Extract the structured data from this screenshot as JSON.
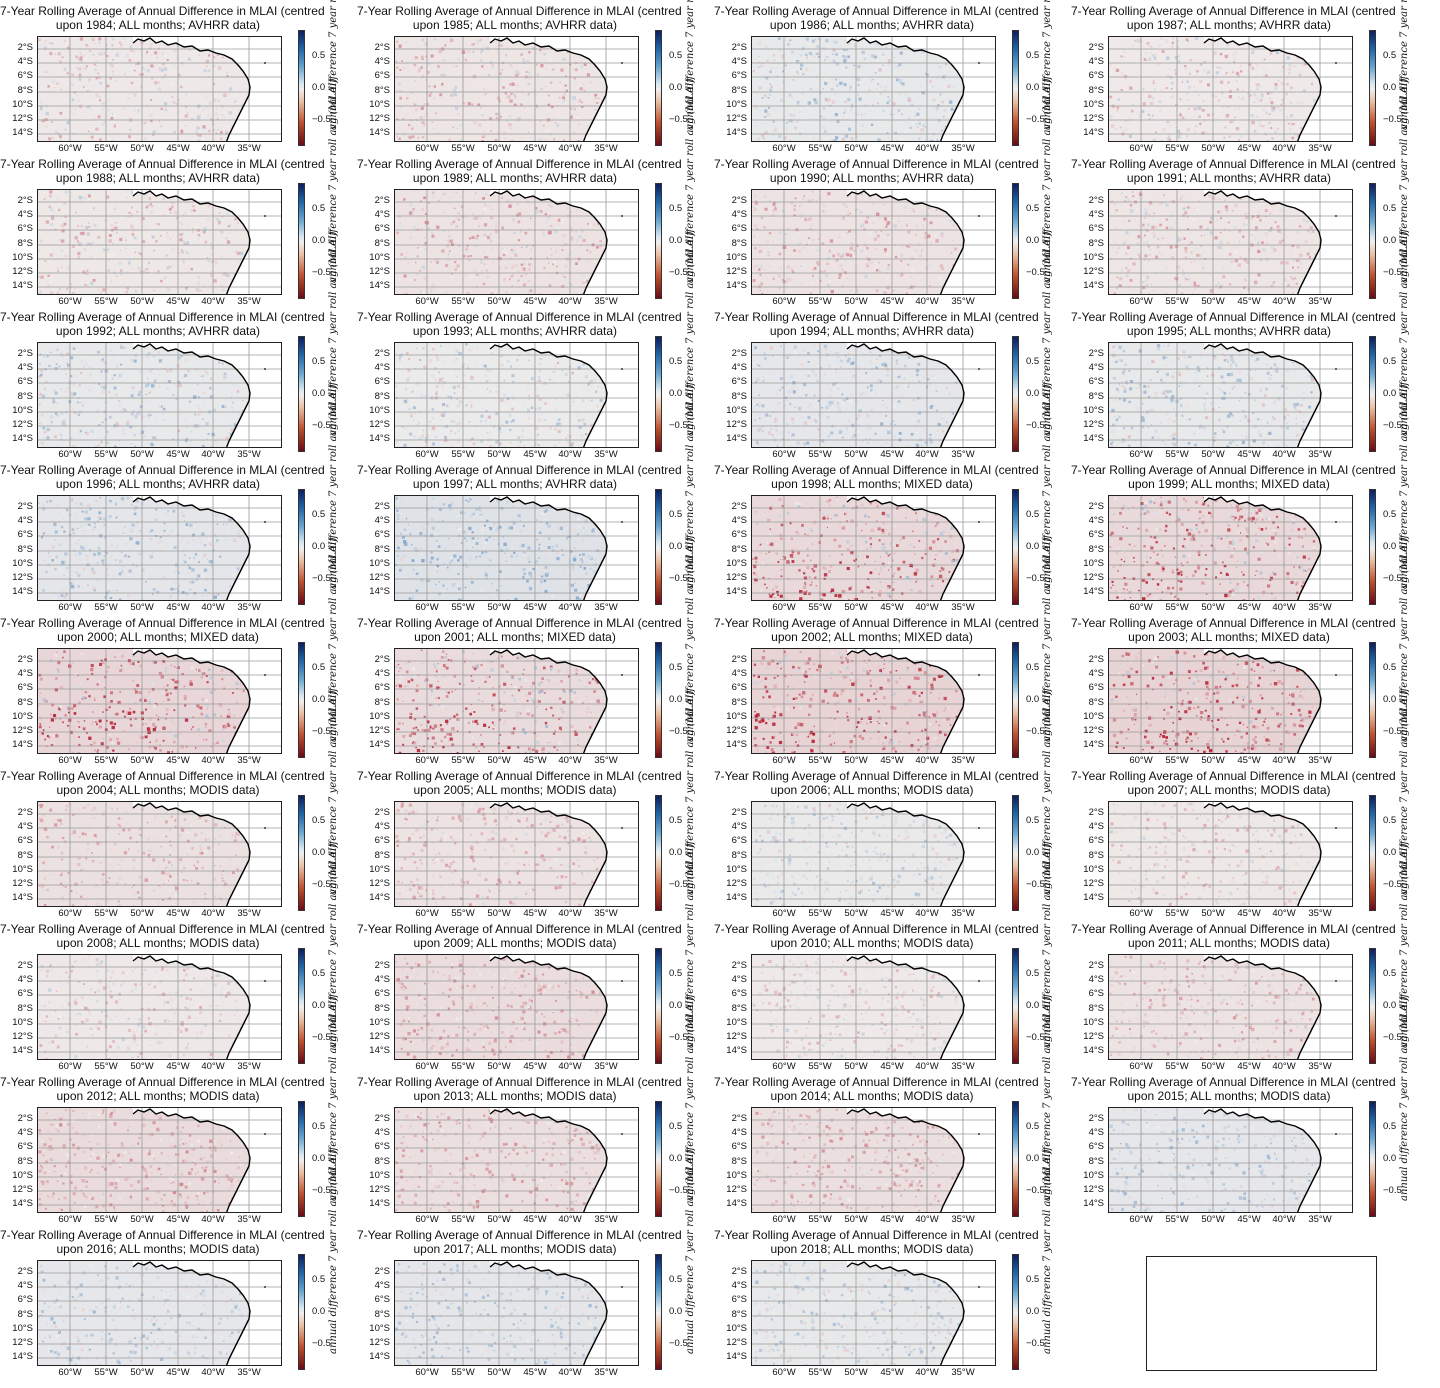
{
  "chart_data": {
    "type": "heatmap",
    "layout": "10 rows x 4 columns of map panels; final axes empty",
    "colors": {
      "positive": "#2166ac",
      "zero": "#f0eeed",
      "negative": "#b2182b",
      "coast": "#000000"
    },
    "titles": [
      {
        "l1": "7-Year Rolling Average of Annual Difference in MLAI (centred",
        "l2": "upon 1984; ALL months; AVHRR data)",
        "year": 1984,
        "source": "AVHRR"
      },
      {
        "l1": "7-Year Rolling Average of Annual Difference in MLAI (centred",
        "l2": "upon 1985; ALL months; AVHRR data)",
        "year": 1985,
        "source": "AVHRR"
      },
      {
        "l1": "7-Year Rolling Average of Annual Difference in MLAI (centred",
        "l2": "upon 1986; ALL months; AVHRR data)",
        "year": 1986,
        "source": "AVHRR"
      },
      {
        "l1": "7-Year Rolling Average of Annual Difference in MLAI (centred",
        "l2": "upon 1987; ALL months; AVHRR data)",
        "year": 1987,
        "source": "AVHRR"
      },
      {
        "l1": "7-Year Rolling Average of Annual Difference in MLAI (centred",
        "l2": "upon 1988; ALL months; AVHRR data)",
        "year": 1988,
        "source": "AVHRR"
      },
      {
        "l1": "7-Year Rolling Average of Annual Difference in MLAI (centred",
        "l2": "upon 1989; ALL months; AVHRR data)",
        "year": 1989,
        "source": "AVHRR"
      },
      {
        "l1": "7-Year Rolling Average of Annual Difference in MLAI (centred",
        "l2": "upon 1990; ALL months; AVHRR data)",
        "year": 1990,
        "source": "AVHRR"
      },
      {
        "l1": "7-Year Rolling Average of Annual Difference in MLAI (centred",
        "l2": "upon 1991; ALL months; AVHRR data)",
        "year": 1991,
        "source": "AVHRR"
      },
      {
        "l1": "7-Year Rolling Average of Annual Difference in MLAI (centred",
        "l2": "upon 1992; ALL months; AVHRR data)",
        "year": 1992,
        "source": "AVHRR"
      },
      {
        "l1": "7-Year Rolling Average of Annual Difference in MLAI (centred",
        "l2": "upon 1993; ALL months; AVHRR data)",
        "year": 1993,
        "source": "AVHRR"
      },
      {
        "l1": "7-Year Rolling Average of Annual Difference in MLAI (centred",
        "l2": "upon 1994; ALL months; AVHRR data)",
        "year": 1994,
        "source": "AVHRR"
      },
      {
        "l1": "7-Year Rolling Average of Annual Difference in MLAI (centred",
        "l2": "upon 1995; ALL months; AVHRR data)",
        "year": 1995,
        "source": "AVHRR"
      },
      {
        "l1": "7-Year Rolling Average of Annual Difference in MLAI (centred",
        "l2": "upon 1996; ALL months; AVHRR data)",
        "year": 1996,
        "source": "AVHRR"
      },
      {
        "l1": "7-Year Rolling Average of Annual Difference in MLAI (centred",
        "l2": "upon 1997; ALL months; AVHRR data)",
        "year": 1997,
        "source": "AVHRR"
      },
      {
        "l1": "7-Year Rolling Average of Annual Difference in MLAI (centred",
        "l2": "upon 1998; ALL months; MIXED data)",
        "year": 1998,
        "source": "MIXED"
      },
      {
        "l1": "7-Year Rolling Average of Annual Difference in MLAI (centred",
        "l2": "upon 1999; ALL months; MIXED data)",
        "year": 1999,
        "source": "MIXED"
      },
      {
        "l1": "7-Year Rolling Average of Annual Difference in MLAI (centred",
        "l2": "upon 2000; ALL months; MIXED data)",
        "year": 2000,
        "source": "MIXED"
      },
      {
        "l1": "7-Year Rolling Average of Annual Difference in MLAI (centred",
        "l2": "upon 2001; ALL months; MIXED data)",
        "year": 2001,
        "source": "MIXED"
      },
      {
        "l1": "7-Year Rolling Average of Annual Difference in MLAI (centred",
        "l2": "upon 2002; ALL months; MIXED data)",
        "year": 2002,
        "source": "MIXED"
      },
      {
        "l1": "7-Year Rolling Average of Annual Difference in MLAI (centred",
        "l2": "upon 2003; ALL months; MIXED data)",
        "year": 2003,
        "source": "MIXED"
      },
      {
        "l1": "7-Year Rolling Average of Annual Difference in MLAI (centred",
        "l2": "upon 2004; ALL months; MODIS data)",
        "year": 2004,
        "source": "MODIS"
      },
      {
        "l1": "7-Year Rolling Average of Annual Difference in MLAI (centred",
        "l2": "upon 2005; ALL months; MODIS data)",
        "year": 2005,
        "source": "MODIS"
      },
      {
        "l1": "7-Year Rolling Average of Annual Difference in MLAI (centred",
        "l2": "upon 2006; ALL months; MODIS data)",
        "year": 2006,
        "source": "MODIS"
      },
      {
        "l1": "7-Year Rolling Average of Annual Difference in MLAI (centred",
        "l2": "upon 2007; ALL months; MODIS data)",
        "year": 2007,
        "source": "MODIS"
      },
      {
        "l1": "7-Year Rolling Average of Annual Difference in MLAI (centred",
        "l2": "upon 2008; ALL months; MODIS data)",
        "year": 2008,
        "source": "MODIS"
      },
      {
        "l1": "7-Year Rolling Average of Annual Difference in MLAI (centred",
        "l2": "upon 2009; ALL months; MODIS data)",
        "year": 2009,
        "source": "MODIS"
      },
      {
        "l1": "7-Year Rolling Average of Annual Difference in MLAI (centred",
        "l2": "upon 2010; ALL months; MODIS data)",
        "year": 2010,
        "source": "MODIS"
      },
      {
        "l1": "7-Year Rolling Average of Annual Difference in MLAI (centred",
        "l2": "upon 2011; ALL months; MODIS data)",
        "year": 2011,
        "source": "MODIS"
      },
      {
        "l1": "7-Year Rolling Average of Annual Difference in MLAI (centred",
        "l2": "upon 2012; ALL months; MODIS data)",
        "year": 2012,
        "source": "MODIS"
      },
      {
        "l1": "7-Year Rolling Average of Annual Difference in MLAI (centred",
        "l2": "upon 2013; ALL months; MODIS data)",
        "year": 2013,
        "source": "MODIS"
      },
      {
        "l1": "7-Year Rolling Average of Annual Difference in MLAI (centred",
        "l2": "upon 2014; ALL months; MODIS data)",
        "year": 2014,
        "source": "MODIS"
      },
      {
        "l1": "7-Year Rolling Average of Annual Difference in MLAI (centred",
        "l2": "upon 2015; ALL months; MODIS data)",
        "year": 2015,
        "source": "MODIS"
      },
      {
        "l1": "7-Year Rolling Average of Annual Difference in MLAI (centred",
        "l2": "upon 2016; ALL months; MODIS data)",
        "year": 2016,
        "source": "MODIS"
      },
      {
        "l1": "7-Year Rolling Average of Annual Difference in MLAI (centred",
        "l2": "upon 2017; ALL months; MODIS data)",
        "year": 2017,
        "source": "MODIS"
      },
      {
        "l1": "7-Year Rolling Average of Annual Difference in MLAI (centred",
        "l2": "upon 2018; ALL months; MODIS data)",
        "year": 2018,
        "source": "MODIS"
      }
    ],
    "lat_ticks": [
      "2°S",
      "4°S",
      "6°S",
      "8°S",
      "10°S",
      "12°S",
      "14°S"
    ],
    "lon_ticks": [
      "60°W",
      "55°W",
      "50°W",
      "45°W",
      "40°W",
      "35°W"
    ],
    "colorbar": {
      "ticks": [
        "0.5",
        "0.0",
        "−0.5"
      ],
      "tick_values": [
        0.5,
        0.0,
        -0.5
      ],
      "range": [
        -0.9,
        0.9
      ],
      "label": "annual difference 7 year roll avg (MLAI)"
    },
    "panel_tint": {
      "1984": -0.05,
      "1985": -0.08,
      "1986": 0.08,
      "1987": -0.04,
      "1988": -0.06,
      "1989": -0.1,
      "1990": -0.1,
      "1991": -0.08,
      "1992": 0.08,
      "1993": 0.04,
      "1994": 0.1,
      "1995": 0.08,
      "1996": 0.12,
      "1997": 0.16,
      "1998": -0.2,
      "1999": -0.2,
      "2000": -0.22,
      "2001": -0.18,
      "2002": -0.25,
      "2003": -0.25,
      "2004": -0.12,
      "2005": -0.1,
      "2006": 0.06,
      "2007": -0.06,
      "2008": -0.05,
      "2009": -0.16,
      "2010": -0.04,
      "2011": -0.1,
      "2012": -0.18,
      "2013": -0.14,
      "2014": -0.14,
      "2015": 0.1,
      "2016": 0.1,
      "2017": 0.12,
      "2018": 0.08
    }
  }
}
